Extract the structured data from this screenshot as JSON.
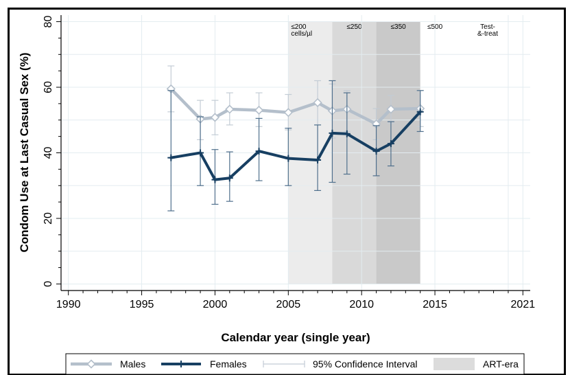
{
  "chart_data": {
    "type": "line",
    "xlabel": "Calendar year (single year)",
    "ylabel": "Condom Use at Last Casual Sex (%)",
    "xlim": [
      1989.5,
      2021.5
    ],
    "ylim": [
      -2,
      82
    ],
    "x_ticks": [
      1990,
      1995,
      2000,
      2005,
      2010,
      2015,
      2021
    ],
    "x_tick_labels": [
      "1990",
      "1995",
      "2000",
      "2005",
      "2010",
      "2015",
      "2021"
    ],
    "y_ticks": [
      0,
      20,
      40,
      60,
      80
    ],
    "y_tick_labels": [
      "0",
      "20",
      "40",
      "60",
      "80"
    ],
    "grid": true,
    "series": [
      {
        "name": "Males",
        "color": "#b4bfcb",
        "marker": "diamond",
        "points": [
          {
            "x": 1997,
            "y": 59.5,
            "lo": 52.5,
            "hi": 66.5
          },
          {
            "x": 1999,
            "y": 50.3,
            "lo": 44.0,
            "hi": 56.0
          },
          {
            "x": 2000,
            "y": 50.8,
            "lo": 45.5,
            "hi": 56.0
          },
          {
            "x": 2001,
            "y": 53.3,
            "lo": 48.5,
            "hi": 58.3
          },
          {
            "x": 2003,
            "y": 53.0,
            "lo": 48.0,
            "hi": 58.3
          },
          {
            "x": 2005,
            "y": 52.3,
            "lo": 47.0,
            "hi": 57.8
          },
          {
            "x": 2007,
            "y": 55.3,
            "lo": 48.5,
            "hi": 62.0
          },
          {
            "x": 2008,
            "y": 52.8,
            "lo": 44.5,
            "hi": 61.0
          },
          {
            "x": 2009,
            "y": 53.3,
            "lo": 46.5,
            "hi": 59.0
          },
          {
            "x": 2011,
            "y": 48.8,
            "lo": 44.0,
            "hi": 53.5
          },
          {
            "x": 2012,
            "y": 53.3,
            "lo": 49.0,
            "hi": 57.5
          },
          {
            "x": 2014,
            "y": 53.5,
            "lo": 48.0,
            "hi": 59.0
          }
        ]
      },
      {
        "name": "Females",
        "color": "#173f62",
        "marker": "plus",
        "points": [
          {
            "x": 1997,
            "y": 38.5,
            "lo": 22.3,
            "hi": 59.0
          },
          {
            "x": 1999,
            "y": 40.0,
            "lo": 30.0,
            "hi": 51.0
          },
          {
            "x": 2000,
            "y": 31.8,
            "lo": 24.3,
            "hi": 41.0
          },
          {
            "x": 2001,
            "y": 32.3,
            "lo": 25.2,
            "hi": 40.3
          },
          {
            "x": 2003,
            "y": 40.5,
            "lo": 31.5,
            "hi": 50.5
          },
          {
            "x": 2005,
            "y": 38.3,
            "lo": 30.0,
            "hi": 47.5
          },
          {
            "x": 2007,
            "y": 37.8,
            "lo": 28.5,
            "hi": 48.5
          },
          {
            "x": 2008,
            "y": 46.0,
            "lo": 31.0,
            "hi": 62.0
          },
          {
            "x": 2009,
            "y": 45.8,
            "lo": 33.5,
            "hi": 58.3
          },
          {
            "x": 2011,
            "y": 40.5,
            "lo": 33.0,
            "hi": 48.3
          },
          {
            "x": 2012,
            "y": 42.8,
            "lo": 36.0,
            "hi": 49.5
          },
          {
            "x": 2014,
            "y": 52.5,
            "lo": 46.5,
            "hi": 59.0
          }
        ]
      }
    ],
    "art_eras": [
      {
        "label": "≤200\ncells/µl",
        "x_start": 2005,
        "x_end": 2008,
        "color": "#ececec"
      },
      {
        "label": "≤250",
        "x_start": 2008,
        "x_end": 2011,
        "color": "#d9d9d9"
      },
      {
        "label": "≤350",
        "x_start": 2011,
        "x_end": 2014,
        "color": "#c9c9c9"
      },
      {
        "label": "≤500",
        "x_start": 2014,
        "x_end": 2016,
        "color": "#ffffff"
      },
      {
        "label": "Test-\n&-treat",
        "x_start": 2016,
        "x_end": 2021,
        "color": "#ffffff"
      }
    ],
    "legend": {
      "position": "bottom",
      "items": [
        {
          "label": "Males",
          "kind": "males"
        },
        {
          "label": "Females",
          "kind": "females"
        },
        {
          "label": "95% Confidence Interval",
          "kind": "ci"
        },
        {
          "label": "ART-era",
          "kind": "art"
        }
      ]
    }
  }
}
